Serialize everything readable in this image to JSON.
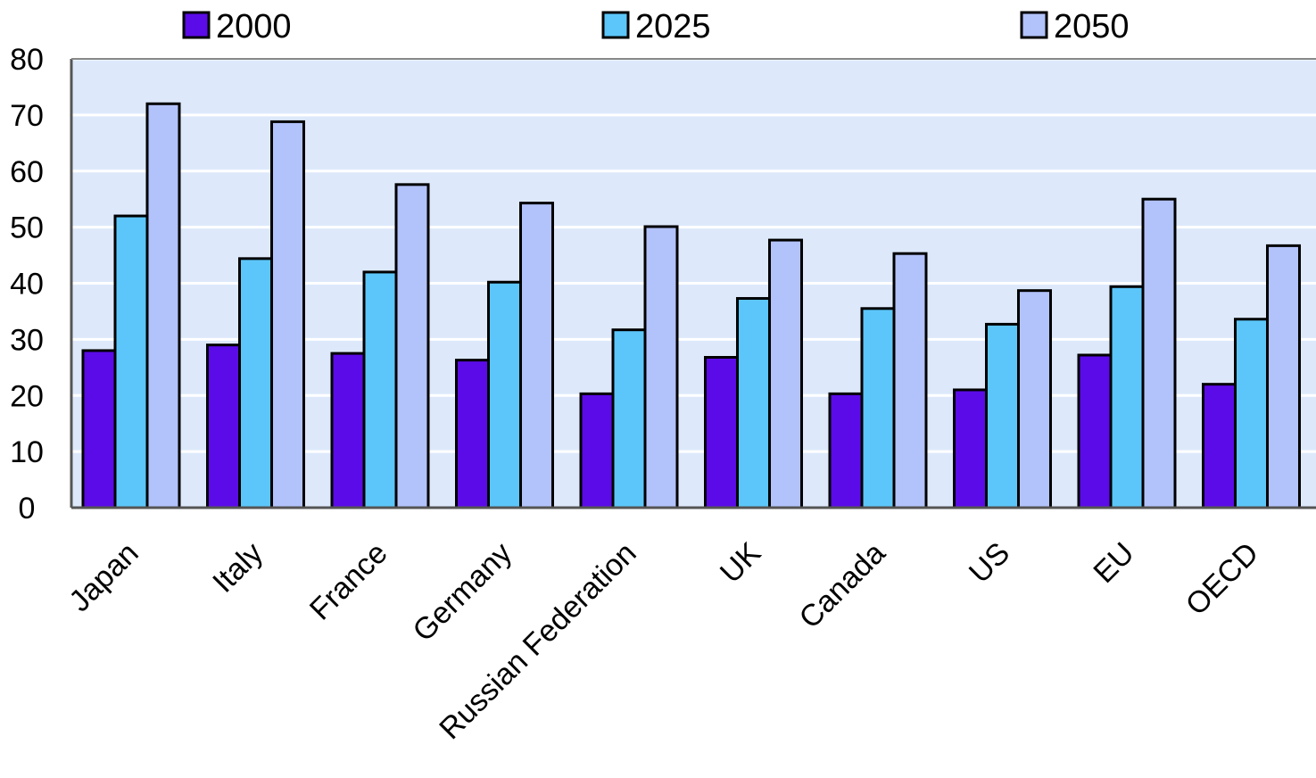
{
  "chart_data": {
    "type": "bar",
    "title": "",
    "xlabel": "",
    "ylabel": "",
    "categories": [
      "Japan",
      "Italy",
      "France",
      "Germany",
      "Russian Federation",
      "UK",
      "Canada",
      "US",
      "EU",
      "OECD"
    ],
    "series": [
      {
        "name": "2000",
        "color": "#5b0be8",
        "values": [
          28,
          29,
          27.5,
          26.3,
          20.3,
          26.8,
          20.3,
          21,
          27.2,
          22
        ]
      },
      {
        "name": "2025",
        "color": "#5cc6fa",
        "values": [
          52,
          44.4,
          42,
          40.2,
          31.7,
          37.3,
          35.5,
          32.7,
          39.4,
          33.6
        ]
      },
      {
        "name": "2050",
        "color": "#b2c2fa",
        "values": [
          72,
          68.8,
          57.6,
          54.3,
          50.1,
          47.7,
          45.3,
          38.7,
          55,
          46.7
        ]
      }
    ],
    "yticks": [
      "0",
      "10",
      "20",
      "30",
      "40",
      "50",
      "60",
      "70",
      "80"
    ],
    "ylim": [
      0,
      80
    ],
    "grid": true,
    "legend_position": "top",
    "plot_background": "#dde9fb"
  }
}
